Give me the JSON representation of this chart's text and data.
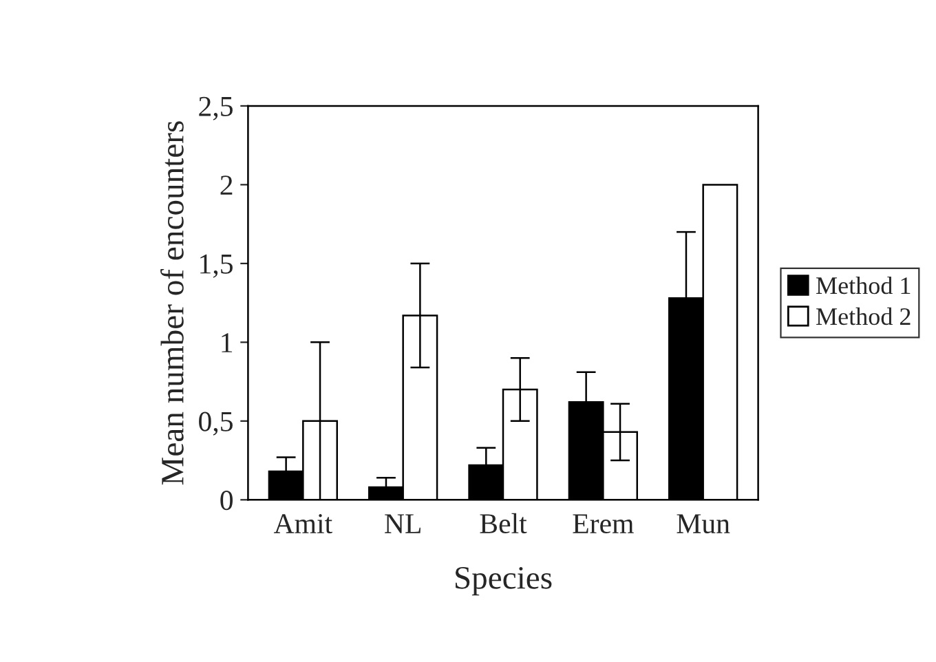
{
  "chart_data": {
    "type": "bar",
    "xlabel": "Species",
    "ylabel": "Mean number of encounters",
    "categories": [
      "Amit",
      "NL",
      "Belt",
      "Erem",
      "Mun"
    ],
    "series": [
      {
        "name": "Method 1",
        "color": "#000000",
        "values": [
          0.18,
          0.08,
          0.22,
          0.62,
          1.28
        ],
        "errors": [
          0.09,
          0.06,
          0.11,
          0.19,
          0.42
        ]
      },
      {
        "name": "Method 2",
        "color": "#ffffff",
        "values": [
          0.5,
          1.17,
          0.7,
          0.43,
          2.0
        ],
        "errors": [
          0.5,
          0.33,
          0.2,
          0.18,
          null
        ]
      }
    ],
    "ylim": [
      0,
      2.5
    ],
    "yticks": [
      {
        "value": 0,
        "label": "0"
      },
      {
        "value": 0.5,
        "label": "0,5"
      },
      {
        "value": 1,
        "label": "1"
      },
      {
        "value": 1.5,
        "label": "1,5"
      },
      {
        "value": 2,
        "label": "2"
      },
      {
        "value": 2.5,
        "label": "2,5"
      }
    ],
    "grid": false,
    "legend": "right"
  }
}
